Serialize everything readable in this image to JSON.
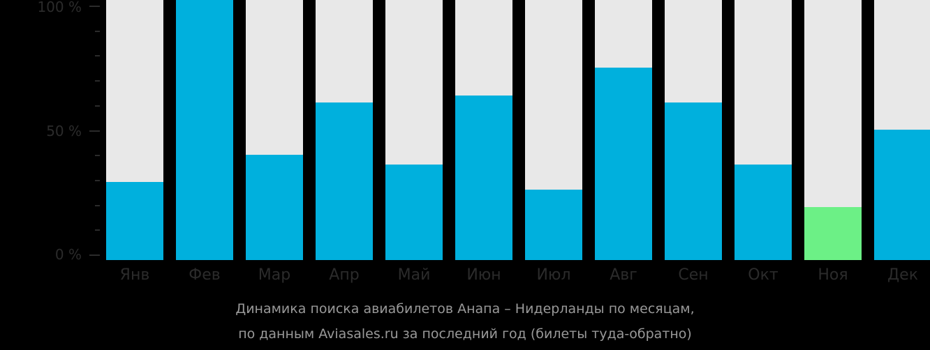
{
  "chart_data": {
    "type": "bar",
    "title": "Динамика поиска авиабилетов Анапа – Нидерланды по месяцам, по данным Aviasales.ru за последний год (билеты туда-обратно)",
    "xlabel": "",
    "ylabel": "",
    "ylim": [
      0,
      100
    ],
    "y_ticks": [
      "0 %",
      "50 %",
      "100 %"
    ],
    "categories": [
      "Янв",
      "Фев",
      "Мар",
      "Апр",
      "Май",
      "Июн",
      "Июл",
      "Авг",
      "Сен",
      "Окт",
      "Ноя",
      "Дек"
    ],
    "values": [
      29,
      100,
      40,
      61,
      36,
      64,
      26,
      75,
      61,
      36,
      19,
      50
    ],
    "highlight_index": 10,
    "colors": {
      "bar": "#00b0dd",
      "highlight": "#6cf086",
      "background_bar": "#e8e8e8"
    },
    "grid": false,
    "legend": null
  },
  "axis": {
    "y_labels": [
      "100 %",
      "50 %",
      "0 %"
    ]
  },
  "caption": {
    "line1": "Динамика поиска авиабилетов Анапа – Нидерланды по месяцам,",
    "line2": "по данным Aviasales.ru за последний год (билеты туда-обратно)"
  }
}
